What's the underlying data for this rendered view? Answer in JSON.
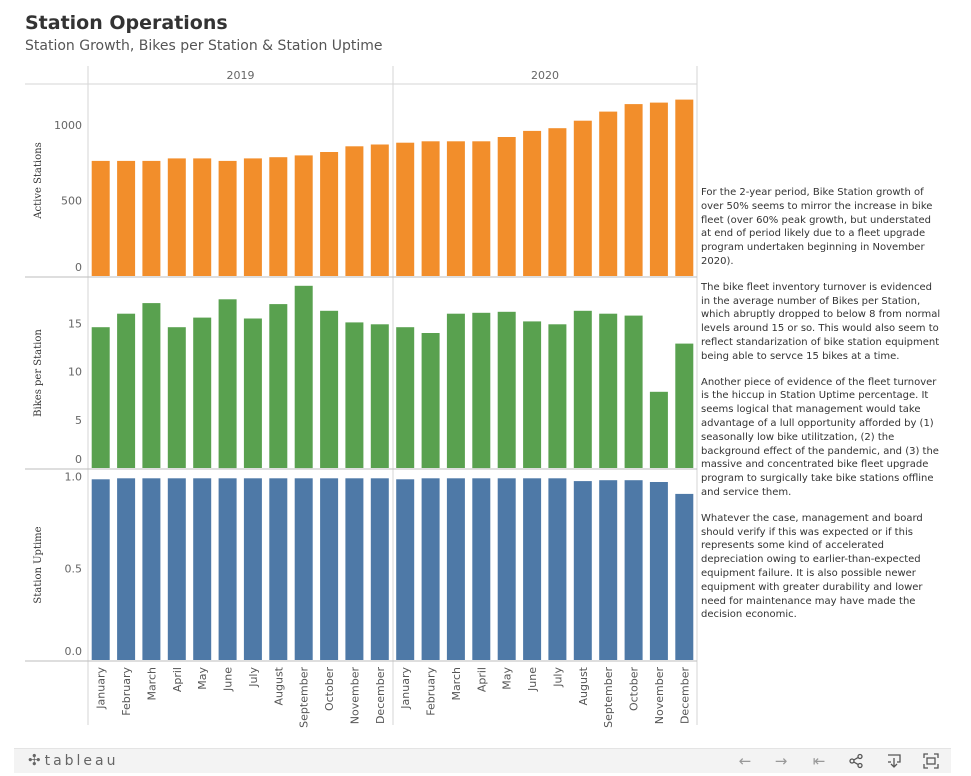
{
  "header": {
    "title": "Station Operations",
    "subtitle": "Station Growth, Bikes per Station & Station Uptime"
  },
  "chart_data": {
    "type": "bar",
    "columns": [
      "2019",
      "2020"
    ],
    "months": [
      "January",
      "February",
      "March",
      "April",
      "May",
      "June",
      "July",
      "August",
      "September",
      "October",
      "November",
      "December"
    ],
    "categories": [
      "2019-01",
      "2019-02",
      "2019-03",
      "2019-04",
      "2019-05",
      "2019-06",
      "2019-07",
      "2019-08",
      "2019-09",
      "2019-10",
      "2019-11",
      "2019-12",
      "2020-01",
      "2020-02",
      "2020-03",
      "2020-04",
      "2020-05",
      "2020-06",
      "2020-07",
      "2020-08",
      "2020-09",
      "2020-10",
      "2020-11",
      "2020-12"
    ],
    "panels": [
      {
        "ylabel": "Active Stations",
        "color": "#f28e2b",
        "ylim": [
          0,
          1260
        ],
        "yticks": [
          {
            "v": 0,
            "t": "0"
          },
          {
            "v": 500,
            "t": "500"
          },
          {
            "v": 1000,
            "t": "1000"
          }
        ],
        "values": [
          763,
          763,
          763,
          780,
          780,
          763,
          780,
          788,
          800,
          822,
          860,
          872,
          884,
          893,
          893,
          893,
          922,
          962,
          980,
          1030,
          1090,
          1140,
          1150,
          1170
        ]
      },
      {
        "ylabel": "Bikes per Station",
        "color": "#59a14f",
        "ylim": [
          0,
          19.6
        ],
        "yticks": [
          {
            "v": 0,
            "t": "0"
          },
          {
            "v": 5,
            "t": "5"
          },
          {
            "v": 10,
            "t": "10"
          },
          {
            "v": 15,
            "t": "15"
          }
        ],
        "values": [
          14.6,
          16.0,
          17.1,
          14.6,
          15.6,
          17.5,
          15.5,
          17.0,
          18.9,
          16.3,
          15.1,
          14.9,
          14.6,
          14.0,
          16.0,
          16.1,
          16.2,
          15.2,
          14.9,
          16.3,
          16.0,
          15.8,
          7.9,
          12.9
        ]
      },
      {
        "ylabel": "Station Uptime",
        "color": "#4e79a7",
        "ylim": [
          0,
          1.03
        ],
        "yticks": [
          {
            "v": 0,
            "t": "0.0"
          },
          {
            "v": 0.5,
            "t": "0.5"
          },
          {
            "v": 1.0,
            "t": "1.0"
          }
        ],
        "values": [
          0.985,
          0.99,
          0.99,
          0.99,
          0.99,
          0.99,
          0.99,
          0.99,
          0.99,
          0.99,
          0.99,
          0.99,
          0.985,
          0.99,
          0.99,
          0.99,
          0.99,
          0.99,
          0.99,
          0.975,
          0.98,
          0.98,
          0.97,
          0.905
        ]
      }
    ],
    "grid": false,
    "legend": "none"
  },
  "commentary": {
    "p1": "For the 2-year period, Bike Station growth of over 50% seems to mirror the increase in bike fleet (over 60% peak growth, but understated at end of period likely due to a fleet upgrade program undertaken beginning in November 2020).",
    "p2": "The bike fleet inventory turnover is evidenced in the average number of Bikes per Station, which abruptly dropped to below 8 from normal levels around 15 or so.  This would also seem to reflect standarization of bike station equipment being able to servce 15 bikes at a time.",
    "p3": "Another piece of evidence of the fleet turnover is the hiccup in Station Uptime percentage.  It seems logical that management would take advantage of a lull opportunity afforded by (1) seasonally low bike utilitzation, (2) the background effect of the pandemic, and (3) the massive and concentrated bike fleet upgrade program to surgically take bike stations offline and service them.",
    "p4": "Whatever the case, management and board should verify if this was expected or if this represents some kind of accelerated depreciation owing to earlier-than-expected equipment failure. It is also possible newer equipment with greater durability and lower need for maintenance may have made the decision economic."
  },
  "toolbar": {
    "brand": "tableau",
    "icons": [
      "undo-icon",
      "redo-icon",
      "revert-icon",
      "share-icon",
      "download-icon",
      "fullscreen-icon"
    ]
  }
}
